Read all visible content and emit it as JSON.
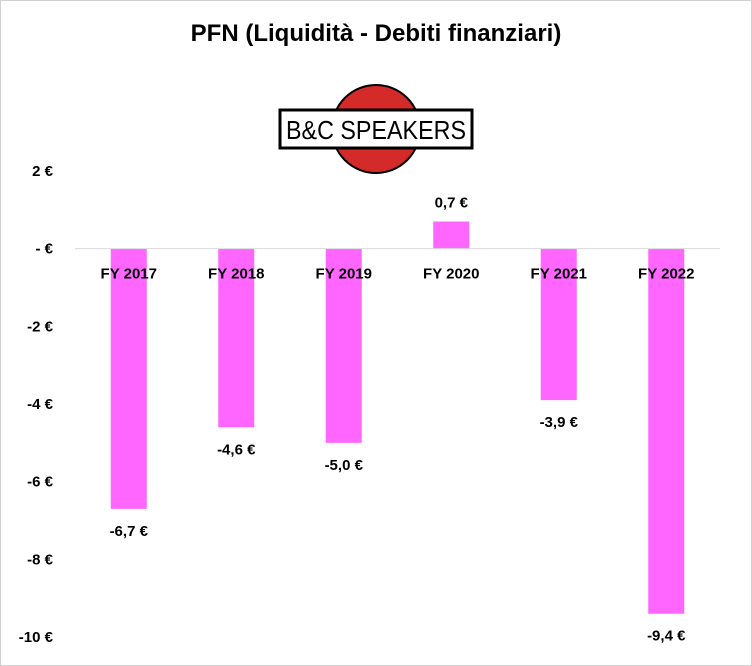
{
  "chart_data": {
    "type": "bar",
    "title": "PFN (Liquidità - Debiti finanziari)",
    "categories": [
      "FY 2017",
      "FY 2018",
      "FY 2019",
      "FY 2020",
      "FY 2021",
      "FY 2022"
    ],
    "values": [
      -6.7,
      -4.6,
      -5.0,
      0.7,
      -3.9,
      -9.4
    ],
    "data_labels": [
      "-6,7 €",
      "-4,6 €",
      "-5,0 €",
      "0,7 €",
      "-3,9 €",
      "-9,4 €"
    ],
    "ylim": [
      -10,
      2
    ],
    "yticks": [
      2,
      0,
      -2,
      -4,
      -6,
      -8,
      -10
    ],
    "ytick_labels": [
      "2 €",
      "- €",
      "-2 €",
      "-4 €",
      "-6 €",
      "-8 €",
      "-10 €"
    ],
    "xlabel": "",
    "ylabel": "",
    "grid": false,
    "legend": "none",
    "bar_color": "#FF66FF"
  },
  "logo": {
    "text": "B&C SPEAKERS",
    "circle_color": "#D42A2A"
  }
}
